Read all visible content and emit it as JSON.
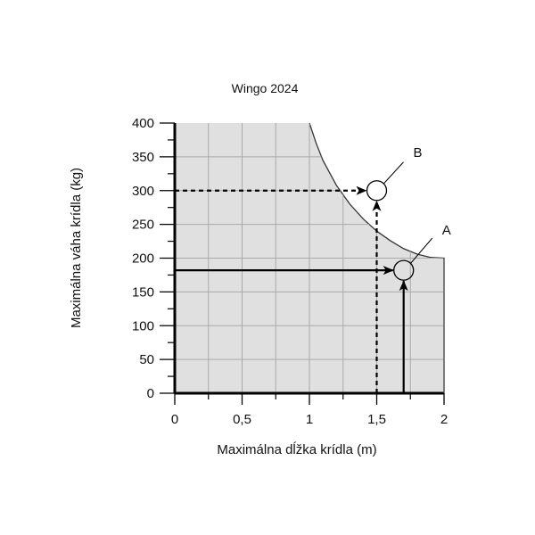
{
  "chart_data": {
    "type": "area",
    "title": "Wingo 2024",
    "xlabel": "Maximálna dĺžka krídla (m)",
    "ylabel": "Maximálna váha krídla (kg)",
    "xlim": [
      0,
      2
    ],
    "ylim": [
      0,
      400
    ],
    "x_ticks": [
      {
        "value": 0,
        "label": "0"
      },
      {
        "value": 0.5,
        "label": "0,5"
      },
      {
        "value": 1,
        "label": "1"
      },
      {
        "value": 1.5,
        "label": "1,5"
      },
      {
        "value": 2,
        "label": "2"
      }
    ],
    "y_ticks": [
      {
        "value": 0,
        "label": "0"
      },
      {
        "value": 50,
        "label": "50"
      },
      {
        "value": 100,
        "label": "100"
      },
      {
        "value": 150,
        "label": "150"
      },
      {
        "value": 200,
        "label": "200"
      },
      {
        "value": 250,
        "label": "250"
      },
      {
        "value": 300,
        "label": "300"
      },
      {
        "value": 350,
        "label": "350"
      },
      {
        "value": 400,
        "label": "400"
      }
    ],
    "grid": true,
    "region": {
      "fill": "#e0e0e0",
      "boundary": [
        {
          "x": 0,
          "y": 400
        },
        {
          "x": 1.0,
          "y": 400
        },
        {
          "x": 1.05,
          "y": 370
        },
        {
          "x": 1.1,
          "y": 345
        },
        {
          "x": 1.2,
          "y": 308
        },
        {
          "x": 1.3,
          "y": 280
        },
        {
          "x": 1.4,
          "y": 258
        },
        {
          "x": 1.5,
          "y": 240
        },
        {
          "x": 1.6,
          "y": 226
        },
        {
          "x": 1.7,
          "y": 214
        },
        {
          "x": 1.8,
          "y": 206
        },
        {
          "x": 1.9,
          "y": 201
        },
        {
          "x": 2.0,
          "y": 200
        },
        {
          "x": 2.0,
          "y": 0
        }
      ]
    },
    "points": [
      {
        "label": "A",
        "x": 1.7,
        "y": 182,
        "line_style": "solid"
      },
      {
        "label": "B",
        "x": 1.5,
        "y": 300,
        "line_style": "dashed"
      }
    ]
  }
}
